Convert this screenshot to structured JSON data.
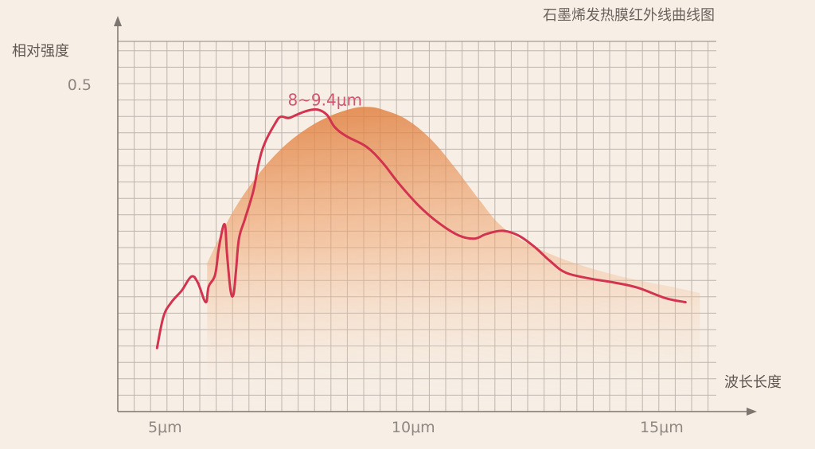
{
  "chart_data": {
    "type": "line",
    "title": "石墨烯发热膜红外线曲线图",
    "xlabel": "波长长度",
    "ylabel": "相对强度",
    "x_ticks": [
      "5μm",
      "10μm",
      "15μm"
    ],
    "x_tick_values": [
      5,
      10,
      15
    ],
    "y_ticks": [
      "0.5"
    ],
    "y_tick_values": [
      0.5
    ],
    "xlim": [
      4.05,
      16.1
    ],
    "ylim": [
      0,
      0.565
    ],
    "grid": true,
    "annotation": {
      "text": "8~9.4μm",
      "x": 8.7,
      "y": 0.5
    },
    "colors": {
      "line": "#d2344f",
      "area": "#e8894a",
      "background": "#f7efe6",
      "grid": "#bdb5ae",
      "annotation": "#d0566f"
    },
    "series": [
      {
        "kind": "line",
        "x": [
          4.84,
          4.97,
          5.13,
          5.34,
          5.53,
          5.66,
          5.82,
          5.88,
          6.01,
          6.09,
          6.2,
          6.25,
          6.32,
          6.38,
          6.43,
          6.49,
          6.61,
          6.78,
          6.89,
          7.01,
          7.22,
          7.33,
          7.49,
          7.65,
          7.86,
          8.07,
          8.26,
          8.42,
          8.66,
          9.06,
          9.38,
          9.7,
          10.1,
          10.51,
          10.91,
          11.23,
          11.47,
          11.79,
          12.11,
          12.43,
          12.75,
          13.07,
          13.56,
          14.04,
          14.52,
          15.08,
          15.48
        ],
        "y": [
          0.097,
          0.145,
          0.167,
          0.185,
          0.206,
          0.197,
          0.167,
          0.191,
          0.209,
          0.252,
          0.286,
          0.24,
          0.185,
          0.179,
          0.215,
          0.264,
          0.294,
          0.337,
          0.38,
          0.41,
          0.44,
          0.45,
          0.448,
          0.453,
          0.459,
          0.461,
          0.453,
          0.434,
          0.42,
          0.404,
          0.38,
          0.349,
          0.315,
          0.288,
          0.269,
          0.264,
          0.271,
          0.276,
          0.269,
          0.252,
          0.23,
          0.212,
          0.203,
          0.197,
          0.189,
          0.173,
          0.167
        ]
      },
      {
        "kind": "area",
        "x": [
          5.85,
          6.33,
          6.81,
          7.3,
          7.78,
          8.26,
          8.74,
          9.06,
          9.38,
          9.86,
          10.35,
          10.83,
          11.31,
          11.79,
          12.43,
          13.23,
          14.2,
          15.16,
          15.77
        ],
        "y": [
          0.227,
          0.3,
          0.355,
          0.398,
          0.428,
          0.449,
          0.462,
          0.465,
          0.461,
          0.446,
          0.416,
          0.373,
          0.325,
          0.282,
          0.252,
          0.227,
          0.206,
          0.191,
          0.181
        ]
      }
    ]
  }
}
